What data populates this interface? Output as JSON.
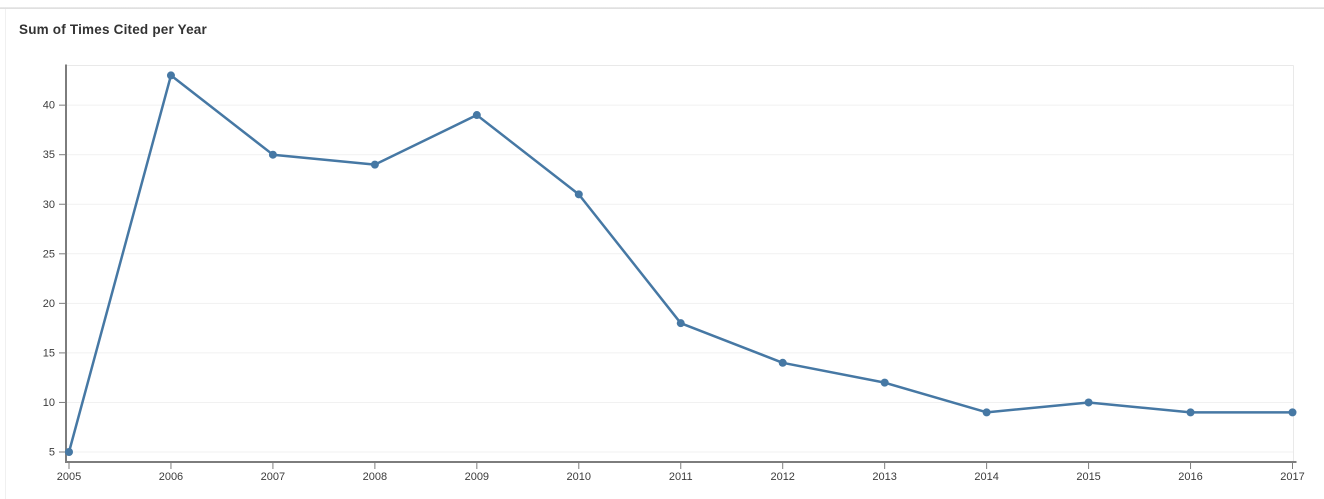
{
  "panel": {
    "title": "Sum of Times Cited per Year"
  },
  "chart_data": {
    "type": "line",
    "title": "Sum of Times Cited per Year",
    "categories": [
      "2005",
      "2006",
      "2007",
      "2008",
      "2009",
      "2010",
      "2011",
      "2012",
      "2013",
      "2014",
      "2015",
      "2016",
      "2017"
    ],
    "values": [
      5,
      43,
      35,
      34,
      39,
      31,
      18,
      14,
      12,
      9,
      10,
      9,
      9
    ],
    "xlabel": "",
    "ylabel": "",
    "y_ticks": [
      5,
      10,
      15,
      20,
      25,
      30,
      35,
      40
    ],
    "ylim": [
      4,
      44.3
    ],
    "grid": "horizontal-only",
    "legend": "none",
    "colors": {
      "line": "#4678a4",
      "point": "#4678a4",
      "axis": "#7d7d7d",
      "grid": "#f1f1f1",
      "frame": "#e9e9e9",
      "tick_label": "#3c3c3c",
      "title": "#333333"
    }
  }
}
